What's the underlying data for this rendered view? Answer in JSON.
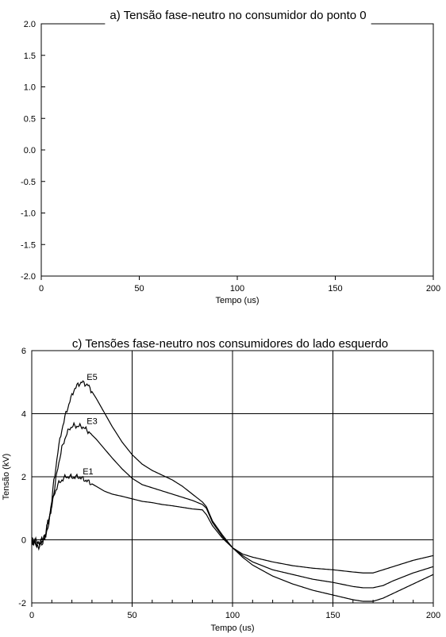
{
  "chart_data": [
    {
      "type": "line",
      "title": "a) Tensão fase-neutro no consumidor do ponto 0",
      "xlabel": "Tempo (us)",
      "ylabel": "",
      "xlim": [
        0,
        200
      ],
      "ylim": [
        -2.0,
        2.0
      ],
      "xticks": [
        0,
        50,
        100,
        150,
        200
      ],
      "xtick_labels": [
        "0",
        "50",
        "100",
        "150",
        "200"
      ],
      "yticks": [
        2.0,
        1.5,
        1.0,
        0.5,
        0.0,
        -0.5,
        -1.0,
        -1.5,
        -2.0
      ],
      "ytick_labels": [
        "2.0",
        "1.5",
        "1.0",
        "0.5",
        "0.0",
        "-0.5",
        "-1.0",
        "-1.5",
        "-2.0"
      ],
      "grid": false,
      "series": []
    },
    {
      "type": "line",
      "title": "c) Tensões fase-neutro nos consumidores do lado esquerdo",
      "xlabel": "Tempo (us)",
      "ylabel": "Tensão (kV)",
      "xlim": [
        0,
        200
      ],
      "ylim": [
        -2,
        6
      ],
      "xticks": [
        0,
        50,
        100,
        150,
        200
      ],
      "xtick_labels": [
        "0",
        "50",
        "100",
        "150",
        "200"
      ],
      "yticks": [
        6,
        4,
        2,
        0,
        -2
      ],
      "ytick_labels": [
        "6",
        "4",
        "2",
        "0",
        "-2"
      ],
      "grid": true,
      "series": [
        {
          "name": "E5",
          "x": [
            0,
            3,
            5,
            7,
            9,
            11,
            13,
            15,
            17,
            19,
            21,
            23,
            25,
            28,
            32,
            36,
            40,
            45,
            50,
            55,
            60,
            65,
            70,
            75,
            80,
            85,
            87,
            90,
            95,
            100,
            105,
            110,
            120,
            130,
            140,
            150,
            160,
            165,
            170,
            175,
            180,
            190,
            200
          ],
          "y": [
            0.0,
            -0.1,
            -0.05,
            0.2,
            0.8,
            1.8,
            2.8,
            3.5,
            4.0,
            4.4,
            4.75,
            4.92,
            5.0,
            4.9,
            4.5,
            4.05,
            3.6,
            3.1,
            2.7,
            2.4,
            2.2,
            2.05,
            1.9,
            1.7,
            1.45,
            1.2,
            1.05,
            0.6,
            0.15,
            -0.25,
            -0.55,
            -0.8,
            -1.15,
            -1.4,
            -1.6,
            -1.75,
            -1.9,
            -1.95,
            -1.95,
            -1.85,
            -1.7,
            -1.4,
            -1.1
          ]
        },
        {
          "name": "E3",
          "x": [
            0,
            3,
            5,
            7,
            9,
            11,
            13,
            15,
            17,
            19,
            21,
            23,
            25,
            28,
            32,
            36,
            40,
            45,
            50,
            55,
            60,
            65,
            70,
            75,
            80,
            85,
            87,
            90,
            95,
            100,
            105,
            110,
            120,
            130,
            140,
            150,
            160,
            165,
            170,
            175,
            180,
            190,
            200
          ],
          "y": [
            0.0,
            -0.15,
            -0.1,
            0.15,
            0.7,
            1.5,
            2.3,
            2.9,
            3.3,
            3.55,
            3.62,
            3.6,
            3.6,
            3.45,
            3.2,
            2.9,
            2.6,
            2.25,
            1.95,
            1.75,
            1.65,
            1.55,
            1.45,
            1.35,
            1.25,
            1.12,
            1.0,
            0.55,
            0.1,
            -0.25,
            -0.5,
            -0.7,
            -0.95,
            -1.1,
            -1.25,
            -1.35,
            -1.48,
            -1.52,
            -1.52,
            -1.45,
            -1.3,
            -1.05,
            -0.85
          ]
        },
        {
          "name": "E1",
          "x": [
            0,
            3,
            5,
            7,
            9,
            11,
            13,
            15,
            17,
            19,
            21,
            23,
            25,
            28,
            32,
            36,
            40,
            45,
            50,
            55,
            60,
            65,
            70,
            75,
            80,
            85,
            87,
            90,
            95,
            100,
            105,
            110,
            120,
            130,
            140,
            150,
            160,
            165,
            170,
            175,
            180,
            190,
            200
          ],
          "y": [
            0.0,
            -0.2,
            -0.1,
            0.2,
            0.8,
            1.4,
            1.75,
            1.9,
            2.0,
            2.0,
            1.98,
            2.0,
            1.95,
            1.85,
            1.7,
            1.55,
            1.45,
            1.38,
            1.3,
            1.22,
            1.18,
            1.12,
            1.08,
            1.03,
            0.98,
            0.95,
            0.8,
            0.45,
            0.05,
            -0.25,
            -0.45,
            -0.55,
            -0.7,
            -0.82,
            -0.9,
            -0.95,
            -1.02,
            -1.05,
            -1.05,
            -0.95,
            -0.85,
            -0.65,
            -0.5
          ]
        }
      ]
    }
  ]
}
